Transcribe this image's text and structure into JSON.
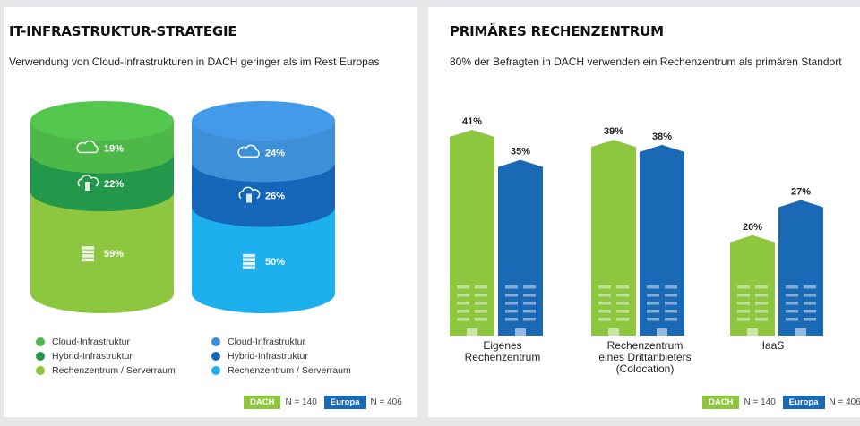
{
  "left": {
    "title": "IT-INFRASTRUKTUR-STRATEGIE",
    "subtitle": "Verwendung von Cloud-Infrastrukturen in DACH geringer als im Rest Europas",
    "legend_dach": [
      "Cloud-Infrastruktur",
      "Hybrid-Infrastruktur",
      "Rechenzentrum / Serverraum"
    ],
    "legend_europa": [
      "Cloud-Infrastruktur",
      "Hybrid-Infrastruktur",
      "Rechenzentrum / Serverraum"
    ],
    "footer": {
      "dach_badge": "DACH",
      "dach_n": "N = 140",
      "eu_badge": "Europa",
      "eu_n": "N = 406"
    }
  },
  "right": {
    "title": "PRIMÄRES RECHENZENTRUM",
    "subtitle": "80% der Befragten in DACH verwenden ein Rechenzentrum als primären Standort",
    "categories": [
      [
        "Eigenes",
        "Rechenzentrum"
      ],
      [
        "Rechenzentrum",
        "eines Drittanbieters",
        "(Colocation)"
      ],
      [
        "IaaS"
      ]
    ],
    "footer": {
      "dach_badge": "DACH",
      "dach_n": "N = 140",
      "eu_badge": "Europa",
      "eu_n": "N = 406"
    }
  },
  "colors": {
    "dach_cloud": "#4db848",
    "dach_hybrid": "#23974a",
    "dach_dc": "#8dc63f",
    "eu_cloud": "#3d8fd8",
    "eu_hybrid": "#1565b8",
    "eu_dc": "#1cb0ee",
    "dach_bar": "#8dc63f",
    "eu_bar": "#1a69b5",
    "badge_dach": "#8dc63f",
    "badge_eu": "#1a69b5"
  },
  "chart_data": [
    {
      "type": "stacked-cylinder",
      "title": "IT-INFRASTRUKTUR-STRATEGIE",
      "categories": [
        "Cloud-Infrastruktur",
        "Hybrid-Infrastruktur",
        "Rechenzentrum / Serverraum"
      ],
      "series": [
        {
          "name": "DACH",
          "values": [
            19,
            22,
            59
          ],
          "labels": [
            "19%",
            "22%",
            "59%"
          ]
        },
        {
          "name": "Europa",
          "values": [
            24,
            26,
            50
          ],
          "labels": [
            "24%",
            "26%",
            "50%"
          ]
        }
      ],
      "icons": [
        "cloud-icon",
        "hybrid-cloud-icon",
        "server-icon"
      ]
    },
    {
      "type": "bar",
      "title": "PRIMÄRES RECHENZENTRUM",
      "categories": [
        "Eigenes Rechenzentrum",
        "Rechenzentrum eines Drittanbieters (Colocation)",
        "IaaS"
      ],
      "series": [
        {
          "name": "DACH",
          "values": [
            41,
            39,
            20
          ],
          "labels": [
            "41%",
            "39%",
            "20%"
          ]
        },
        {
          "name": "Europa",
          "values": [
            35,
            38,
            27
          ],
          "labels": [
            "35%",
            "38%",
            "27%"
          ]
        }
      ]
    }
  ]
}
